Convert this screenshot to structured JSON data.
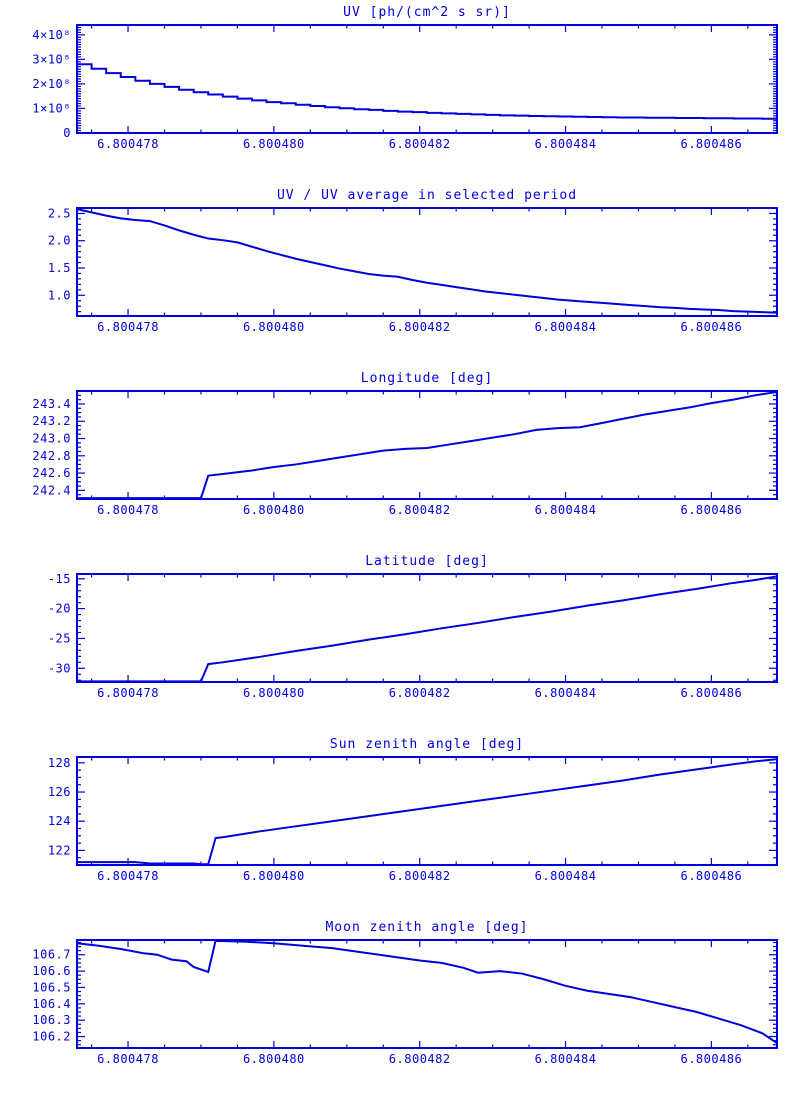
{
  "page": {
    "background": "#ffffff",
    "accent": "#0000dd"
  },
  "chart_data": [
    {
      "type": "line",
      "title": "UV [ph/(cm^2 s sr)]",
      "y_unit": "1e8 ph/(cm^2 s sr)",
      "step": true,
      "xlim": [
        6.8004773,
        6.8004869
      ],
      "ylim": [
        0,
        4.4
      ],
      "x_ticks": [
        {
          "value": 6.800478,
          "label": "6.800478"
        },
        {
          "value": 6.80048,
          "label": "6.800480"
        },
        {
          "value": 6.800482,
          "label": "6.800482"
        },
        {
          "value": 6.800484,
          "label": "6.800484"
        },
        {
          "value": 6.800486,
          "label": "6.800486"
        }
      ],
      "x_minor_step": 5e-07,
      "y_ticks": [
        {
          "value": 0,
          "label": "0"
        },
        {
          "value": 1,
          "label": "1×10⁸"
        },
        {
          "value": 2,
          "label": "2×10⁸"
        },
        {
          "value": 3,
          "label": "3×10⁸"
        },
        {
          "value": 4,
          "label": "4×10⁸"
        }
      ],
      "y_minor_step": 0.1,
      "x0": 6.8004773,
      "dx": 2e-07,
      "y": [
        2.8,
        2.62,
        2.44,
        2.28,
        2.13,
        2.0,
        1.88,
        1.76,
        1.66,
        1.57,
        1.48,
        1.4,
        1.33,
        1.26,
        1.21,
        1.15,
        1.1,
        1.05,
        1.01,
        0.97,
        0.94,
        0.9,
        0.87,
        0.85,
        0.82,
        0.8,
        0.78,
        0.76,
        0.74,
        0.72,
        0.71,
        0.69,
        0.68,
        0.67,
        0.66,
        0.65,
        0.64,
        0.63,
        0.63,
        0.62,
        0.62,
        0.61,
        0.61,
        0.6,
        0.6,
        0.59,
        0.59,
        0.58,
        0.64
      ]
    },
    {
      "type": "line",
      "title": "UV / UV average in selected period",
      "step": false,
      "xlim": [
        6.8004773,
        6.8004869
      ],
      "ylim": [
        0.62,
        2.6
      ],
      "x_ticks": [
        {
          "value": 6.800478,
          "label": "6.800478"
        },
        {
          "value": 6.80048,
          "label": "6.800480"
        },
        {
          "value": 6.800482,
          "label": "6.800482"
        },
        {
          "value": 6.800484,
          "label": "6.800484"
        },
        {
          "value": 6.800486,
          "label": "6.800486"
        }
      ],
      "x_minor_step": 5e-07,
      "y_ticks": [
        {
          "value": 1.0,
          "label": "1.0"
        },
        {
          "value": 1.5,
          "label": "1.5"
        },
        {
          "value": 2.0,
          "label": "2.0"
        },
        {
          "value": 2.5,
          "label": "2.5"
        }
      ],
      "y_minor_step": 0.1,
      "x0": 6.8004773,
      "dx": 2e-07,
      "y": [
        2.58,
        2.52,
        2.46,
        2.41,
        2.38,
        2.36,
        2.28,
        2.19,
        2.11,
        2.04,
        2.01,
        1.97,
        1.89,
        1.81,
        1.74,
        1.67,
        1.61,
        1.55,
        1.49,
        1.44,
        1.39,
        1.36,
        1.34,
        1.28,
        1.23,
        1.19,
        1.15,
        1.11,
        1.07,
        1.04,
        1.01,
        0.98,
        0.95,
        0.92,
        0.9,
        0.88,
        0.86,
        0.84,
        0.82,
        0.8,
        0.78,
        0.77,
        0.75,
        0.74,
        0.73,
        0.71,
        0.7,
        0.69,
        0.68
      ]
    },
    {
      "type": "line",
      "title": "Longitude [deg]",
      "step": false,
      "xlim": [
        6.8004773,
        6.8004869
      ],
      "ylim": [
        242.3,
        243.55
      ],
      "x_ticks": [
        {
          "value": 6.800478,
          "label": "6.800478"
        },
        {
          "value": 6.80048,
          "label": "6.800480"
        },
        {
          "value": 6.800482,
          "label": "6.800482"
        },
        {
          "value": 6.800484,
          "label": "6.800484"
        },
        {
          "value": 6.800486,
          "label": "6.800486"
        }
      ],
      "x_minor_step": 5e-07,
      "y_ticks": [
        {
          "value": 242.4,
          "label": "242.4"
        },
        {
          "value": 242.6,
          "label": "242.6"
        },
        {
          "value": 242.8,
          "label": "242.8"
        },
        {
          "value": 243.0,
          "label": "243.0"
        },
        {
          "value": 243.2,
          "label": "243.2"
        },
        {
          "value": 243.4,
          "label": "243.4"
        }
      ],
      "y_minor_step": 0.05,
      "points": [
        [
          6.8004773,
          242.31
        ],
        [
          6.800479,
          242.31
        ],
        [
          6.8004791,
          242.57
        ],
        [
          6.8004794,
          242.6
        ],
        [
          6.8004797,
          242.63
        ],
        [
          6.80048,
          242.67
        ],
        [
          6.8004803,
          242.7
        ],
        [
          6.8004806,
          242.74
        ],
        [
          6.8004809,
          242.78
        ],
        [
          6.8004812,
          242.82
        ],
        [
          6.8004815,
          242.86
        ],
        [
          6.8004818,
          242.88
        ],
        [
          6.8004821,
          242.89
        ],
        [
          6.8004824,
          242.93
        ],
        [
          6.8004827,
          242.97
        ],
        [
          6.800483,
          243.01
        ],
        [
          6.8004833,
          243.05
        ],
        [
          6.8004836,
          243.1
        ],
        [
          6.8004839,
          243.12
        ],
        [
          6.8004842,
          243.13
        ],
        [
          6.8004845,
          243.18
        ],
        [
          6.8004848,
          243.23
        ],
        [
          6.8004851,
          243.28
        ],
        [
          6.8004854,
          243.32
        ],
        [
          6.8004857,
          243.36
        ],
        [
          6.800486,
          243.41
        ],
        [
          6.8004863,
          243.45
        ],
        [
          6.8004866,
          243.5
        ],
        [
          6.8004869,
          243.54
        ]
      ]
    },
    {
      "type": "line",
      "title": "Latitude [deg]",
      "step": false,
      "xlim": [
        6.8004773,
        6.8004869
      ],
      "ylim": [
        -32.3,
        -14.2
      ],
      "x_ticks": [
        {
          "value": 6.800478,
          "label": "6.800478"
        },
        {
          "value": 6.80048,
          "label": "6.800480"
        },
        {
          "value": 6.800482,
          "label": "6.800482"
        },
        {
          "value": 6.800484,
          "label": "6.800484"
        },
        {
          "value": 6.800486,
          "label": "6.800486"
        }
      ],
      "x_minor_step": 5e-07,
      "y_ticks": [
        {
          "value": -15,
          "label": "-15"
        },
        {
          "value": -20,
          "label": "-20"
        },
        {
          "value": -25,
          "label": "-25"
        },
        {
          "value": -30,
          "label": "-30"
        }
      ],
      "y_minor_step": 1,
      "points": [
        [
          6.8004773,
          -32.2
        ],
        [
          6.800479,
          -32.2
        ],
        [
          6.8004791,
          -29.3
        ],
        [
          6.8004793,
          -29.0
        ],
        [
          6.8004798,
          -28.1
        ],
        [
          6.8004803,
          -27.1
        ],
        [
          6.8004808,
          -26.2
        ],
        [
          6.8004813,
          -25.2
        ],
        [
          6.8004818,
          -24.3
        ],
        [
          6.8004823,
          -23.3
        ],
        [
          6.8004828,
          -22.4
        ],
        [
          6.8004833,
          -21.4
        ],
        [
          6.8004838,
          -20.5
        ],
        [
          6.8004843,
          -19.5
        ],
        [
          6.8004848,
          -18.6
        ],
        [
          6.8004853,
          -17.6
        ],
        [
          6.8004858,
          -16.7
        ],
        [
          6.8004863,
          -15.7
        ],
        [
          6.8004866,
          -15.2
        ],
        [
          6.8004869,
          -14.6
        ]
      ]
    },
    {
      "type": "line",
      "title": "Sun zenith angle [deg]",
      "step": false,
      "xlim": [
        6.8004773,
        6.8004869
      ],
      "ylim": [
        121.0,
        128.4
      ],
      "x_ticks": [
        {
          "value": 6.800478,
          "label": "6.800478"
        },
        {
          "value": 6.80048,
          "label": "6.800480"
        },
        {
          "value": 6.800482,
          "label": "6.800482"
        },
        {
          "value": 6.800484,
          "label": "6.800484"
        },
        {
          "value": 6.800486,
          "label": "6.800486"
        }
      ],
      "x_minor_step": 5e-07,
      "y_ticks": [
        {
          "value": 122,
          "label": "122"
        },
        {
          "value": 124,
          "label": "124"
        },
        {
          "value": 126,
          "label": "126"
        },
        {
          "value": 128,
          "label": "128"
        }
      ],
      "y_minor_step": 0.5,
      "points": [
        [
          6.8004773,
          121.2
        ],
        [
          6.8004781,
          121.2
        ],
        [
          6.8004783,
          121.1
        ],
        [
          6.8004789,
          121.1
        ],
        [
          6.800479,
          121.05
        ],
        [
          6.8004791,
          121.05
        ],
        [
          6.8004792,
          122.85
        ],
        [
          6.8004793,
          122.9
        ],
        [
          6.8004798,
          123.3
        ],
        [
          6.8004803,
          123.65
        ],
        [
          6.8004808,
          124.0
        ],
        [
          6.8004813,
          124.35
        ],
        [
          6.8004818,
          124.7
        ],
        [
          6.8004823,
          125.05
        ],
        [
          6.8004828,
          125.4
        ],
        [
          6.8004833,
          125.75
        ],
        [
          6.8004838,
          126.1
        ],
        [
          6.8004843,
          126.45
        ],
        [
          6.8004848,
          126.8
        ],
        [
          6.8004853,
          127.2
        ],
        [
          6.8004858,
          127.55
        ],
        [
          6.8004863,
          127.9
        ],
        [
          6.8004866,
          128.1
        ],
        [
          6.8004869,
          128.25
        ]
      ]
    },
    {
      "type": "line",
      "title": "Moon zenith angle [deg]",
      "step": false,
      "xlim": [
        6.8004773,
        6.8004869
      ],
      "ylim": [
        106.13,
        106.79
      ],
      "x_ticks": [
        {
          "value": 6.800478,
          "label": "6.800478"
        },
        {
          "value": 6.80048,
          "label": "6.800480"
        },
        {
          "value": 6.800482,
          "label": "6.800482"
        },
        {
          "value": 6.800484,
          "label": "6.800484"
        },
        {
          "value": 6.800486,
          "label": "6.800486"
        }
      ],
      "x_minor_step": 5e-07,
      "y_ticks": [
        {
          "value": 106.2,
          "label": "106.2"
        },
        {
          "value": 106.3,
          "label": "106.3"
        },
        {
          "value": 106.4,
          "label": "106.4"
        },
        {
          "value": 106.5,
          "label": "106.5"
        },
        {
          "value": 106.6,
          "label": "106.6"
        },
        {
          "value": 106.7,
          "label": "106.7"
        }
      ],
      "y_minor_step": 0.025,
      "points": [
        [
          6.8004773,
          106.77
        ],
        [
          6.8004776,
          106.755
        ],
        [
          6.8004779,
          106.735
        ],
        [
          6.8004782,
          106.71
        ],
        [
          6.8004784,
          106.7
        ],
        [
          6.8004786,
          106.67
        ],
        [
          6.8004788,
          106.66
        ],
        [
          6.8004789,
          106.625
        ],
        [
          6.8004791,
          106.595
        ],
        [
          6.8004792,
          106.785
        ],
        [
          6.8004796,
          106.78
        ],
        [
          6.80048,
          106.77
        ],
        [
          6.8004804,
          106.755
        ],
        [
          6.8004808,
          106.74
        ],
        [
          6.8004812,
          106.715
        ],
        [
          6.8004816,
          106.69
        ],
        [
          6.800482,
          106.665
        ],
        [
          6.8004823,
          106.65
        ],
        [
          6.8004826,
          106.62
        ],
        [
          6.8004828,
          106.59
        ],
        [
          6.8004831,
          106.6
        ],
        [
          6.8004834,
          106.585
        ],
        [
          6.8004837,
          106.55
        ],
        [
          6.800484,
          106.51
        ],
        [
          6.8004843,
          106.48
        ],
        [
          6.8004846,
          106.46
        ],
        [
          6.8004849,
          106.44
        ],
        [
          6.8004852,
          106.41
        ],
        [
          6.8004855,
          106.38
        ],
        [
          6.8004858,
          106.35
        ],
        [
          6.8004861,
          106.31
        ],
        [
          6.8004864,
          106.27
        ],
        [
          6.8004867,
          106.22
        ],
        [
          6.8004869,
          106.16
        ]
      ]
    }
  ]
}
